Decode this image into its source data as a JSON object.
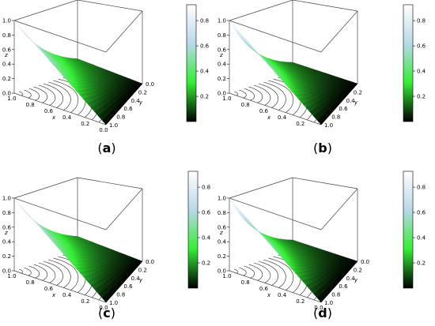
{
  "chart_data": [
    {
      "type": "surface3d",
      "caption": "a",
      "z_axis": {
        "label": "z",
        "ticks": [
          "0.0",
          "0.2",
          "0.4",
          "0.6",
          "0.8",
          "1.0"
        ],
        "range": [
          0,
          1
        ]
      },
      "x_axis": {
        "label": "x",
        "ticks": [
          "0.0",
          "0.2",
          "0.4",
          "0.6",
          "0.8",
          "1.0"
        ],
        "range": [
          0,
          1
        ]
      },
      "y_axis": {
        "label": "y",
        "ticks": [
          "0.0",
          "0.2",
          "0.4",
          "0.6",
          "0.8",
          "1.0"
        ],
        "range": [
          0,
          1
        ]
      },
      "colorbar": {
        "ticks": [
          "0.2",
          "0.4",
          "0.6",
          "0.8"
        ],
        "range": [
          0,
          1
        ],
        "colors": [
          "#000000",
          "#33ee33",
          "#b8d8e8",
          "#ffffff"
        ]
      },
      "surface": {
        "z_at_x0_y0": 1.0,
        "z_at_x1_y1": 0.0,
        "decay": 1.3
      },
      "contour_levels": 12
    },
    {
      "type": "surface3d",
      "caption": "b",
      "z_axis": {
        "label": "z",
        "ticks": [
          "0.0",
          "0.2",
          "0.4",
          "0.6",
          "0.8",
          "1.0"
        ],
        "range": [
          0,
          1
        ]
      },
      "x_axis": {
        "label": "x",
        "ticks": [
          "0.2",
          "0.4",
          "0.6",
          "0.8",
          "1.0"
        ],
        "range": [
          0,
          1
        ]
      },
      "y_axis": {
        "label": "y",
        "ticks": [
          "0.2",
          "0.4",
          "0.6",
          "0.8",
          "1.0"
        ],
        "range": [
          0,
          1
        ]
      },
      "colorbar": {
        "ticks": [
          "0.2",
          "0.4",
          "0.6",
          "0.8"
        ],
        "range": [
          0,
          1
        ],
        "colors": [
          "#000000",
          "#33ee33",
          "#b8d8e8",
          "#ffffff"
        ]
      },
      "surface": {
        "z_at_x0_y0": 1.0,
        "z_at_x1_y1": 0.0,
        "decay": 1.6
      },
      "contour_levels": 12
    },
    {
      "type": "surface3d",
      "caption": "c",
      "z_axis": {
        "label": "z",
        "ticks": [
          "0.0",
          "0.2",
          "0.4",
          "0.6",
          "0.8",
          "1.0"
        ],
        "range": [
          0,
          1
        ]
      },
      "x_axis": {
        "label": "x",
        "ticks": [
          "0.0",
          "0.2",
          "0.4",
          "0.6",
          "0.8",
          "1.0"
        ],
        "range": [
          0,
          1
        ]
      },
      "y_axis": {
        "label": "y",
        "ticks": [
          "0.0",
          "0.2",
          "0.4",
          "0.6",
          "0.8",
          "1.0"
        ],
        "range": [
          0,
          1
        ]
      },
      "colorbar": {
        "ticks": [
          "0.2",
          "0.4",
          "0.6",
          "0.8"
        ],
        "range": [
          0,
          1
        ],
        "colors": [
          "#000000",
          "#33ee33",
          "#b8d8e8",
          "#ffffff"
        ]
      },
      "surface": {
        "z_at_x0_y0": 1.0,
        "z_at_x1_y1": 0.0,
        "decay": 1.3
      },
      "contour_levels": 12
    },
    {
      "type": "surface3d",
      "caption": "d",
      "z_axis": {
        "label": "z",
        "ticks": [
          "0.0",
          "0.2",
          "0.4",
          "0.6",
          "0.8",
          "1.0"
        ],
        "range": [
          0,
          1
        ]
      },
      "x_axis": {
        "label": "x",
        "ticks": [
          "0.0",
          "0.2",
          "0.4",
          "0.6",
          "0.8",
          "1.0"
        ],
        "range": [
          0,
          1
        ]
      },
      "y_axis": {
        "label": "y",
        "ticks": [
          "0.0",
          "0.2",
          "0.4",
          "0.6",
          "0.8",
          "1.0"
        ],
        "range": [
          0,
          1
        ]
      },
      "colorbar": {
        "ticks": [
          "0.2",
          "0.4",
          "0.6",
          "0.8"
        ],
        "range": [
          0,
          1
        ],
        "colors": [
          "#000000",
          "#33ee33",
          "#b8d8e8",
          "#ffffff"
        ]
      },
      "surface": {
        "z_at_x0_y0": 1.0,
        "z_at_x1_y1": 0.0,
        "decay": 1.6
      },
      "contour_levels": 12
    }
  ]
}
